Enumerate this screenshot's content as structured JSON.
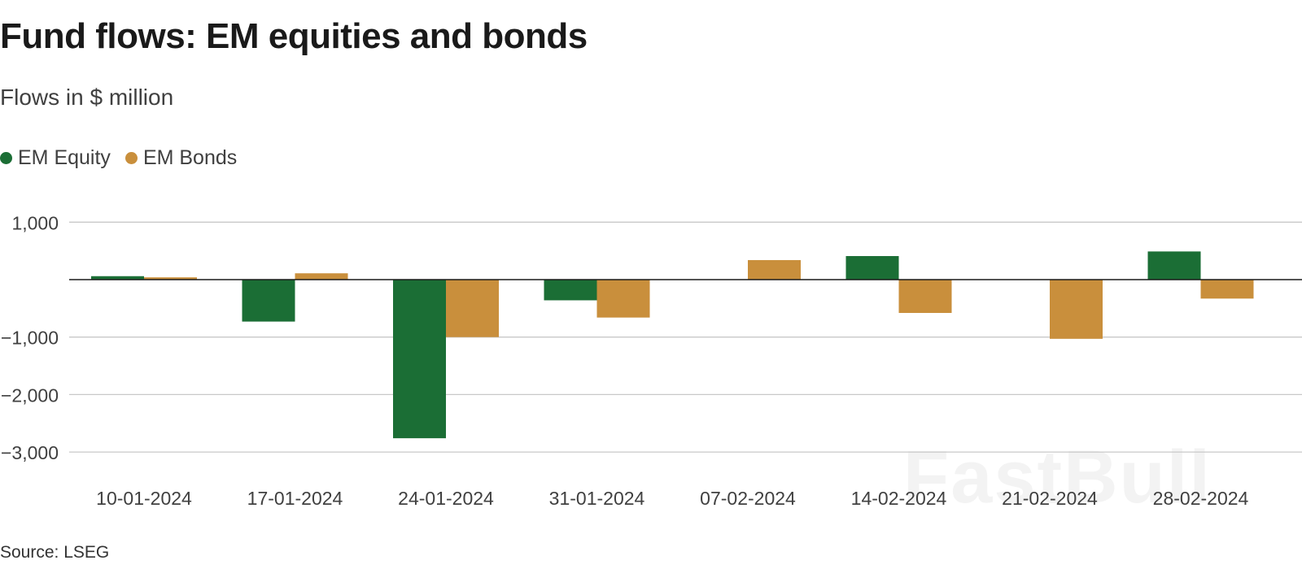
{
  "header": {
    "title": "Fund flows: EM equities and bonds",
    "subtitle": "Flows in $ million"
  },
  "legend": {
    "items": [
      {
        "label": "EM Equity",
        "color": "#1b6e35"
      },
      {
        "label": "EM Bonds",
        "color": "#c98f3c"
      }
    ]
  },
  "footer": {
    "source": "Source: LSEG"
  },
  "watermark": {
    "text": "FastBull"
  },
  "chart_data": {
    "type": "bar",
    "title": "Fund flows: EM equities and bonds",
    "subtitle": "Flows in $ million",
    "categories": [
      "10-01-2024",
      "17-01-2024",
      "24-01-2024",
      "31-01-2024",
      "07-02-2024",
      "14-02-2024",
      "21-02-2024",
      "28-02-2024"
    ],
    "series": [
      {
        "name": "EM Equity",
        "color": "#1b6e35",
        "values": [
          60,
          -730,
          -2760,
          -360,
          0,
          410,
          0,
          490
        ]
      },
      {
        "name": "EM Bonds",
        "color": "#c98f3c",
        "values": [
          40,
          110,
          -1000,
          -660,
          340,
          -580,
          -1030,
          -330
        ]
      }
    ],
    "ylim": [
      -3000,
      1000
    ],
    "yticks": [
      1000,
      -1000,
      -2000,
      -3000
    ],
    "ytick_labels": [
      "1,000",
      "−1,000",
      "−2,000",
      "−3,000"
    ],
    "grid": true,
    "legend_position": "top-left",
    "source": "Source: LSEG"
  }
}
